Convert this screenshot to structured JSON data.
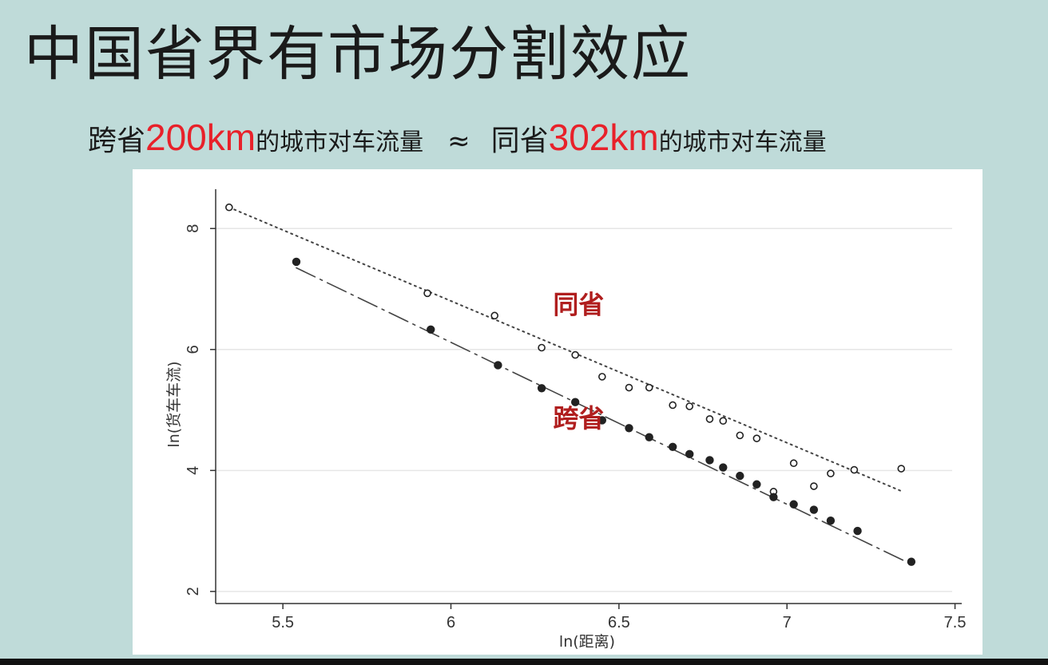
{
  "slide": {
    "title": "中国省界有市场分割效应",
    "subtitle": {
      "part1": "跨省",
      "value1": "200km",
      "part2": "的城市对车流量",
      "approx": "≈",
      "part3": "同省",
      "value2": "302km",
      "part4": "的城市对车流量"
    },
    "colors": {
      "background": "#bfdbd9",
      "highlight": "#e8212a",
      "annotation": "#b01e1e"
    }
  },
  "chart_data": {
    "type": "scatter",
    "title": "",
    "xlabel": "ln(距离)",
    "ylabel": "ln(货车车流)",
    "xlim": [
      5.3,
      7.52
    ],
    "ylim": [
      1.8,
      8.65
    ],
    "xticks": [
      5.5,
      6,
      6.5,
      7,
      7.5
    ],
    "xtick_labels": [
      "5.5",
      "6",
      "6.5",
      "7",
      "7.5"
    ],
    "yticks": [
      2,
      4,
      6,
      8
    ],
    "ytick_labels": [
      "2",
      "4",
      "6",
      "8"
    ],
    "grid": "horizontal",
    "annotations": [
      {
        "text": "同省",
        "x": 6.38,
        "y": 6.6
      },
      {
        "text": "跨省",
        "x": 6.38,
        "y": 4.72
      }
    ],
    "series": [
      {
        "name": "同省",
        "marker": "hollow-circle",
        "line_style": "dotted",
        "fit": {
          "x": [
            5.34,
            7.34
          ],
          "y": [
            8.35,
            3.66
          ]
        },
        "points": [
          [
            5.34,
            8.35
          ],
          [
            5.93,
            6.93
          ],
          [
            6.13,
            6.56
          ],
          [
            6.27,
            6.03
          ],
          [
            6.37,
            5.91
          ],
          [
            6.45,
            5.55
          ],
          [
            6.53,
            5.37
          ],
          [
            6.59,
            5.37
          ],
          [
            6.66,
            5.08
          ],
          [
            6.71,
            5.06
          ],
          [
            6.77,
            4.85
          ],
          [
            6.81,
            4.82
          ],
          [
            6.86,
            4.58
          ],
          [
            6.91,
            4.53
          ],
          [
            6.96,
            3.65
          ],
          [
            7.02,
            4.12
          ],
          [
            7.08,
            3.74
          ],
          [
            7.13,
            3.95
          ],
          [
            7.2,
            4.01
          ],
          [
            7.34,
            4.03
          ]
        ]
      },
      {
        "name": "跨省",
        "marker": "filled-circle",
        "line_style": "long-dash-dot",
        "fit": {
          "x": [
            5.54,
            7.37
          ],
          "y": [
            7.35,
            2.45
          ]
        },
        "points": [
          [
            5.54,
            7.45
          ],
          [
            5.94,
            6.33
          ],
          [
            6.14,
            5.74
          ],
          [
            6.27,
            5.36
          ],
          [
            6.37,
            5.13
          ],
          [
            6.45,
            4.83
          ],
          [
            6.53,
            4.7
          ],
          [
            6.59,
            4.55
          ],
          [
            6.66,
            4.39
          ],
          [
            6.71,
            4.27
          ],
          [
            6.77,
            4.17
          ],
          [
            6.81,
            4.05
          ],
          [
            6.86,
            3.91
          ],
          [
            6.91,
            3.77
          ],
          [
            6.96,
            3.56
          ],
          [
            7.02,
            3.44
          ],
          [
            7.08,
            3.35
          ],
          [
            7.13,
            3.17
          ],
          [
            7.21,
            3.0
          ],
          [
            7.37,
            2.49
          ]
        ]
      }
    ]
  }
}
